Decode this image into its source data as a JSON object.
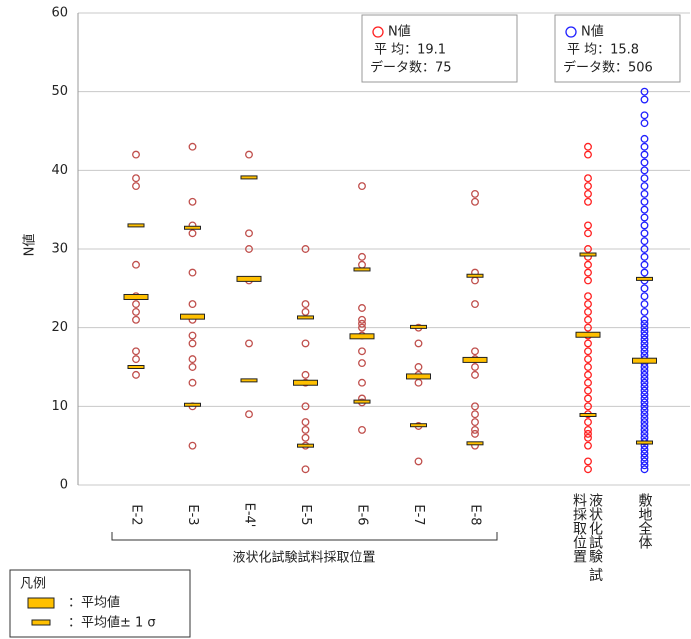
{
  "chart_data": {
    "type": "strip",
    "y_label": "N値",
    "group_label": "液状化試験試料採取位置",
    "categories": [
      "E-2",
      "E-3",
      "E-4'",
      "E-5",
      "E-6",
      "E-7",
      "E-8",
      null,
      "液状化試験 試料採取位置",
      "敷地全体"
    ],
    "colors": [
      "#c0504d",
      "#c0504d",
      "#c0504d",
      "#c0504d",
      "#c0504d",
      "#c0504d",
      "#c0504d",
      null,
      "#ff2020",
      "#2020ff"
    ],
    "points": [
      [
        42,
        39,
        38,
        28,
        24,
        23,
        22,
        21,
        17,
        16,
        14
      ],
      [
        43,
        36,
        33,
        32,
        27,
        23,
        21,
        19,
        18,
        16,
        15,
        13,
        10,
        5
      ],
      [
        42,
        32,
        30,
        26,
        18,
        9
      ],
      [
        30,
        23,
        22,
        18,
        14,
        13,
        10,
        8,
        7,
        6,
        5,
        2
      ],
      [
        38,
        29,
        28,
        22.5,
        21,
        20.5,
        20,
        19,
        17,
        15.5,
        13,
        11,
        10.5,
        7
      ],
      [
        20,
        18,
        15,
        14,
        13,
        7.5,
        3
      ],
      [
        37,
        36,
        27,
        26,
        23,
        17,
        16,
        15,
        14,
        10,
        9,
        8,
        7,
        6.5,
        5
      ],
      null,
      [
        43,
        42,
        39,
        38,
        37,
        36,
        33,
        32,
        30,
        29,
        28,
        27,
        26,
        24,
        23,
        22,
        21,
        20,
        19,
        18,
        17,
        16,
        15,
        14,
        13,
        12,
        11,
        10,
        9,
        8,
        7,
        6.5,
        6,
        5,
        3,
        2
      ],
      [
        50,
        49,
        47,
        46,
        44,
        43,
        42,
        41,
        40,
        39,
        38,
        37,
        36,
        35,
        34,
        33,
        32,
        31,
        30,
        29,
        28,
        27,
        26,
        25,
        24,
        23,
        22,
        21,
        20.5,
        20,
        19.5,
        19,
        18.5,
        18,
        17.5,
        17,
        16.5,
        16,
        15.5,
        15,
        14.5,
        14,
        13.5,
        13,
        12.5,
        12,
        11.5,
        11,
        10.5,
        10,
        9.5,
        9,
        8.5,
        8,
        7.5,
        7,
        6.5,
        6,
        5.5,
        5,
        4.5,
        4,
        3.5,
        3,
        2.5,
        2
      ]
    ],
    "mean": [
      23.9,
      21.4,
      26.2,
      13,
      18.9,
      13.8,
      15.9,
      null,
      19.1,
      15.8
    ],
    "mean_plus_sigma": [
      33,
      32.7,
      39.1,
      21.3,
      27.4,
      20.1,
      26.6,
      null,
      29.3,
      26.2
    ],
    "mean_minus_sigma": [
      15,
      10.2,
      13.3,
      5,
      10.6,
      7.6,
      5.3,
      null,
      8.9,
      5.4
    ],
    "mean_color": "#ffc000",
    "ylim": [
      0,
      60
    ],
    "yticks": [
      0,
      10,
      20,
      30,
      40,
      50,
      60
    ],
    "grid": true,
    "stat_boxes": [
      {
        "series_label": "N値",
        "color": "#ff2020",
        "mean_text": "平 均：19.1",
        "count_text": "データ数：75"
      },
      {
        "series_label": "N値",
        "color": "#2020ff",
        "mean_text": "平 均：15.8",
        "count_text": "データ数：506"
      }
    ],
    "legend": {
      "title": "凡例",
      "items": [
        "：平均値",
        "：平均値± 1 σ"
      ]
    }
  }
}
